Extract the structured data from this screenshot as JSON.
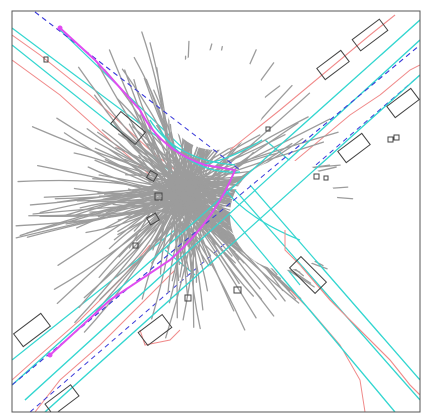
{
  "scene": {
    "type": "autonomous-driving-trajectory-visualization",
    "colors": {
      "background": "#ffffff",
      "frame": "#555555",
      "lane_centerline": "#33d6d0",
      "road_boundary": "#f08a8a",
      "route_dashed": "#3b3bd9",
      "ego_path": "#e04cf0",
      "sampled_trajectories": "#9c9c9c",
      "obstacles": "#444444"
    },
    "ego_path_points": 2
  }
}
